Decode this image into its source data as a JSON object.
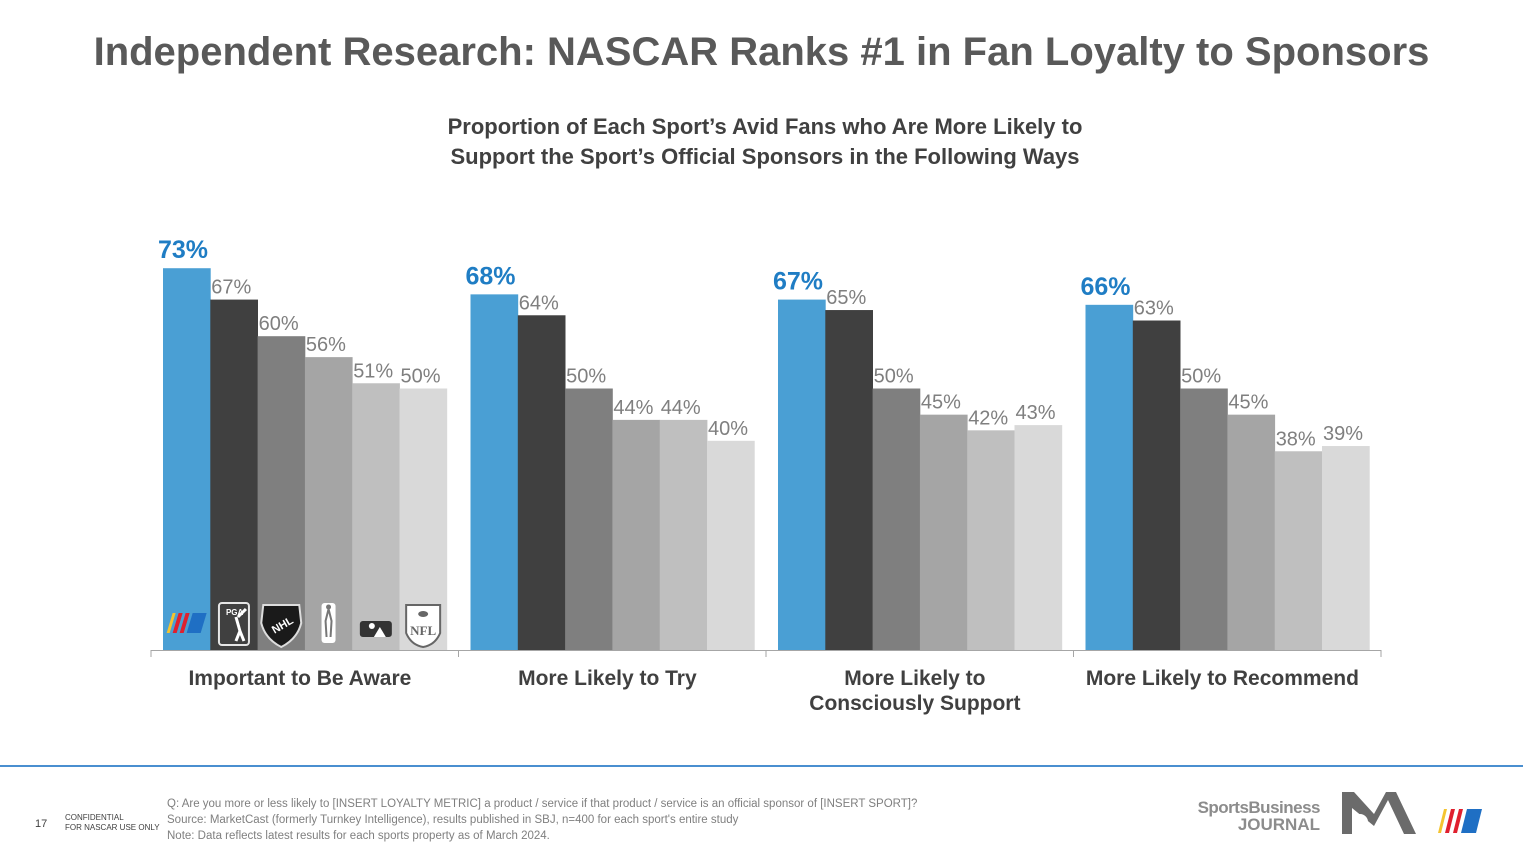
{
  "page": {
    "title": "Independent Research: NASCAR Ranks #1 in Fan Loyalty to Sponsors",
    "page_number": "17",
    "confidential_line1": "CONFIDENTIAL",
    "confidential_line2": "FOR NASCAR USE ONLY",
    "notes": [
      "Q: Are you more or less likely to [INSERT LOYALTY METRIC] a product / service if that product / service is an official sponsor of [INSERT SPORT]?",
      "Source:  MarketCast (formerly Turnkey Intelligence), results published in SBJ, n=400 for each sport's entire study",
      "Note: Data reflects latest results for each sports property as of March 2024."
    ],
    "logos": {
      "sbj_line1": "SportsBusiness",
      "sbj_line2": "JOURNAL",
      "icons": [
        "sports-business-journal-logo",
        "marketcast-logo",
        "nascar-logo"
      ]
    }
  },
  "chart_data": {
    "type": "bar",
    "title": "Proportion of Each Sport’s Avid Fans who Are More Likely to",
    "subtitle": "Support the Sport’s Official Sponsors in the Following Ways",
    "xlabel": "",
    "ylabel": "",
    "ylim": [
      0,
      80
    ],
    "grid": false,
    "legend": "inline icons at base of first group",
    "categories": [
      [
        "Important to Be Aware"
      ],
      [
        "More Likely to Try"
      ],
      [
        "More Likely to",
        "Consciously Support"
      ],
      [
        "More Likely to Recommend"
      ]
    ],
    "series": [
      {
        "name": "NASCAR",
        "icon": "nascar-icon",
        "color": "#4a9fd4",
        "label_color": "#1f7dc4",
        "values": [
          73,
          68,
          67,
          66
        ]
      },
      {
        "name": "PGA Tour",
        "icon": "pga-tour-icon",
        "color": "#404040",
        "label_color": "#7f7f7f",
        "values": [
          67,
          64,
          65,
          63
        ]
      },
      {
        "name": "NHL",
        "icon": "nhl-icon",
        "color": "#7f7f7f",
        "label_color": "#7f7f7f",
        "values": [
          60,
          50,
          50,
          50
        ]
      },
      {
        "name": "NBA",
        "icon": "nba-icon",
        "color": "#a5a5a5",
        "label_color": "#7f7f7f",
        "values": [
          56,
          44,
          45,
          45
        ]
      },
      {
        "name": "MLB",
        "icon": "mlb-icon",
        "color": "#bfbfbf",
        "label_color": "#7f7f7f",
        "values": [
          51,
          44,
          42,
          38
        ]
      },
      {
        "name": "NFL",
        "icon": "nfl-icon",
        "color": "#d9d9d9",
        "label_color": "#7f7f7f",
        "values": [
          50,
          40,
          43,
          39
        ]
      }
    ],
    "value_suffix": "%"
  }
}
